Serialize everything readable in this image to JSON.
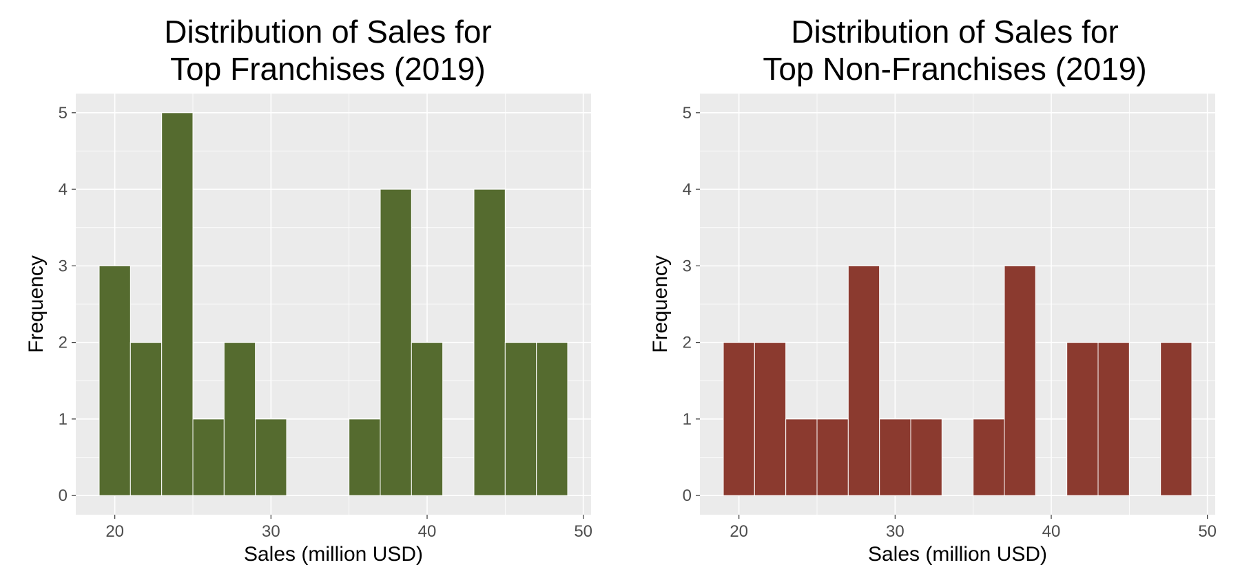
{
  "chart_data": [
    {
      "type": "bar",
      "title_lines": [
        "Distribution of Sales for",
        "Top Franchises (2019)"
      ],
      "xlabel": "Sales (million USD)",
      "ylabel": "Frequency",
      "bin_width": 2,
      "bins": [
        {
          "start": 19,
          "end": 21,
          "count": 3
        },
        {
          "start": 21,
          "end": 23,
          "count": 2
        },
        {
          "start": 23,
          "end": 25,
          "count": 5
        },
        {
          "start": 25,
          "end": 27,
          "count": 1
        },
        {
          "start": 27,
          "end": 29,
          "count": 2
        },
        {
          "start": 29,
          "end": 31,
          "count": 1
        },
        {
          "start": 31,
          "end": 33,
          "count": 0
        },
        {
          "start": 33,
          "end": 35,
          "count": 0
        },
        {
          "start": 35,
          "end": 37,
          "count": 1
        },
        {
          "start": 37,
          "end": 39,
          "count": 4
        },
        {
          "start": 39,
          "end": 41,
          "count": 2
        },
        {
          "start": 41,
          "end": 43,
          "count": 0
        },
        {
          "start": 43,
          "end": 45,
          "count": 4
        },
        {
          "start": 45,
          "end": 47,
          "count": 2
        },
        {
          "start": 47,
          "end": 49,
          "count": 2
        }
      ],
      "xlim": [
        17.5,
        50.5
      ],
      "ylim": [
        -0.25,
        5.25
      ],
      "x_ticks": [
        20,
        30,
        40,
        50
      ],
      "y_ticks": [
        0,
        1,
        2,
        3,
        4,
        5
      ],
      "fill_color": "#556B2F",
      "grid": true,
      "panel_background": "#EBEBEB"
    },
    {
      "type": "bar",
      "title_lines": [
        "Distribution of Sales for",
        "Top Non-Franchises (2019)"
      ],
      "xlabel": "Sales (million USD)",
      "ylabel": "Frequency",
      "bin_width": 2,
      "bins": [
        {
          "start": 19,
          "end": 21,
          "count": 2
        },
        {
          "start": 21,
          "end": 23,
          "count": 2
        },
        {
          "start": 23,
          "end": 25,
          "count": 1
        },
        {
          "start": 25,
          "end": 27,
          "count": 1
        },
        {
          "start": 27,
          "end": 29,
          "count": 3
        },
        {
          "start": 29,
          "end": 31,
          "count": 1
        },
        {
          "start": 31,
          "end": 33,
          "count": 1
        },
        {
          "start": 33,
          "end": 35,
          "count": 0
        },
        {
          "start": 35,
          "end": 37,
          "count": 1
        },
        {
          "start": 37,
          "end": 39,
          "count": 3
        },
        {
          "start": 39,
          "end": 41,
          "count": 0
        },
        {
          "start": 41,
          "end": 43,
          "count": 2
        },
        {
          "start": 43,
          "end": 45,
          "count": 2
        },
        {
          "start": 45,
          "end": 47,
          "count": 0
        },
        {
          "start": 47,
          "end": 49,
          "count": 2
        }
      ],
      "xlim": [
        17.5,
        50.5
      ],
      "ylim": [
        -0.25,
        5.25
      ],
      "x_ticks": [
        20,
        30,
        40,
        50
      ],
      "y_ticks": [
        0,
        1,
        2,
        3,
        4,
        5
      ],
      "fill_color": "#8B3A2F",
      "grid": true,
      "panel_background": "#EBEBEB"
    }
  ]
}
